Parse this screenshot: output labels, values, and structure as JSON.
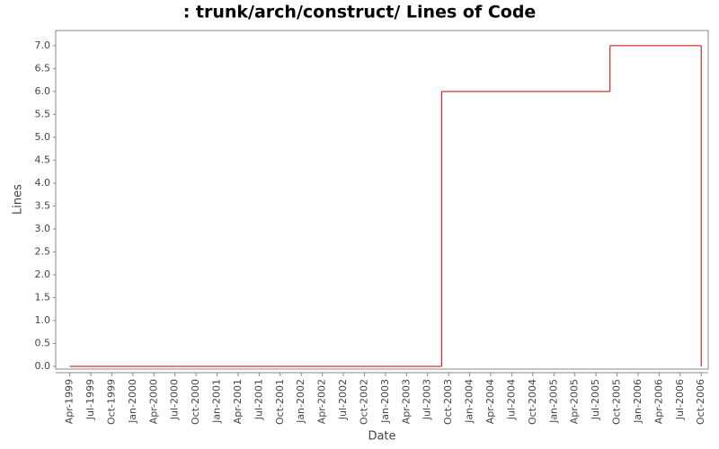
{
  "chart_data": {
    "type": "step-line",
    "title": ": trunk/arch/construct/ Lines of Code",
    "x_label": "Date",
    "y_label": "Lines",
    "step": "post",
    "x": [
      "1999-04",
      "2003-09",
      "2005-09",
      "2006-10"
    ],
    "series": [
      {
        "name": "Lines",
        "color": "#cc0000",
        "values": [
          0,
          6,
          7,
          0
        ]
      }
    ],
    "xlim": [
      "1999-02",
      "2006-11"
    ],
    "xticks": [
      {
        "value": "1999-04",
        "label": "Apr-1999"
      },
      {
        "value": "1999-07",
        "label": "Jul-1999"
      },
      {
        "value": "1999-10",
        "label": "Oct-1999"
      },
      {
        "value": "2000-01",
        "label": "Jan-2000"
      },
      {
        "value": "2000-04",
        "label": "Apr-2000"
      },
      {
        "value": "2000-07",
        "label": "Jul-2000"
      },
      {
        "value": "2000-10",
        "label": "Oct-2000"
      },
      {
        "value": "2001-01",
        "label": "Jan-2001"
      },
      {
        "value": "2001-04",
        "label": "Apr-2001"
      },
      {
        "value": "2001-07",
        "label": "Jul-2001"
      },
      {
        "value": "2001-10",
        "label": "Oct-2001"
      },
      {
        "value": "2002-01",
        "label": "Jan-2002"
      },
      {
        "value": "2002-04",
        "label": "Apr-2002"
      },
      {
        "value": "2002-07",
        "label": "Jul-2002"
      },
      {
        "value": "2002-10",
        "label": "Oct-2002"
      },
      {
        "value": "2003-01",
        "label": "Jan-2003"
      },
      {
        "value": "2003-04",
        "label": "Apr-2003"
      },
      {
        "value": "2003-07",
        "label": "Jul-2003"
      },
      {
        "value": "2003-10",
        "label": "Oct-2003"
      },
      {
        "value": "2004-01",
        "label": "Jan-2004"
      },
      {
        "value": "2004-04",
        "label": "Apr-2004"
      },
      {
        "value": "2004-07",
        "label": "Jul-2004"
      },
      {
        "value": "2004-10",
        "label": "Oct-2004"
      },
      {
        "value": "2005-01",
        "label": "Jan-2005"
      },
      {
        "value": "2005-04",
        "label": "Apr-2005"
      },
      {
        "value": "2005-07",
        "label": "Jul-2005"
      },
      {
        "value": "2005-10",
        "label": "Oct-2005"
      },
      {
        "value": "2006-01",
        "label": "Jan-2006"
      },
      {
        "value": "2006-04",
        "label": "Apr-2006"
      },
      {
        "value": "2006-07",
        "label": "Jul-2006"
      },
      {
        "value": "2006-10",
        "label": "Oct-2006"
      }
    ],
    "ylim": [
      -0.06,
      7.33
    ],
    "yticks": [
      {
        "value": 0,
        "label": "0.0"
      },
      0.5,
      {
        "value": 1,
        "label": "1.0"
      },
      1.5,
      {
        "value": 2,
        "label": "2.0"
      },
      2.5,
      {
        "value": 3,
        "label": "3.0"
      },
      3.5,
      {
        "value": 4,
        "label": "4.0"
      },
      4.5,
      {
        "value": 5,
        "label": "5.0"
      },
      5.5,
      {
        "value": 6,
        "label": "6.0"
      },
      6.5,
      {
        "value": 7,
        "label": "7.0"
      }
    ]
  }
}
